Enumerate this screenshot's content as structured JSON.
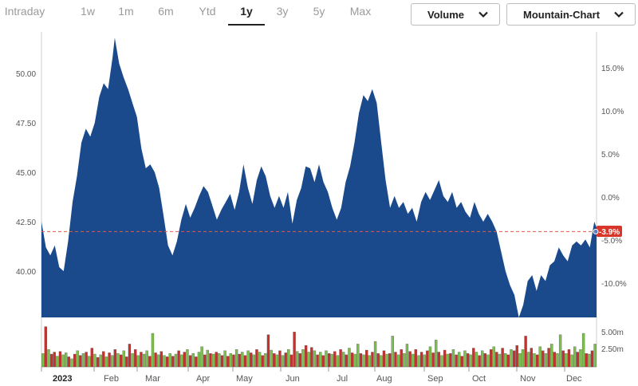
{
  "toolbar": {
    "ranges": [
      "Intraday",
      "1w",
      "1m",
      "6m",
      "Ytd",
      "1y",
      "3y",
      "5y",
      "Max"
    ],
    "active_range": "1y",
    "volume_dropdown": "Volume",
    "chart_type_dropdown": "Mountain-Chart"
  },
  "chart_data": {
    "type": "area",
    "price_ticks": [
      "50.00",
      "47.50",
      "45.00",
      "42.50",
      "40.00"
    ],
    "percent_ticks": [
      "15.0%",
      "10.0%",
      "5.0%",
      "0.0%",
      "-5.0%",
      "-10.0%"
    ],
    "volume_ticks": [
      "5.00m",
      "2.50m"
    ],
    "months": [
      "2023",
      "Feb",
      "Mar",
      "Apr",
      "May",
      "Jun",
      "Jul",
      "Aug",
      "Sep",
      "Oct",
      "Nov",
      "Dec"
    ],
    "current_change": "-3.9%",
    "reference_price": 42.0,
    "fill_color": "#1a4a8c",
    "up_color": "#7cc04b",
    "down_color": "#c9302c",
    "ylim": [
      37.0,
      52.5
    ],
    "points": [
      [
        0,
        42.5
      ],
      [
        2,
        41.2
      ],
      [
        4,
        40.8
      ],
      [
        6,
        41.3
      ],
      [
        8,
        40.2
      ],
      [
        10,
        40.0
      ],
      [
        12,
        41.5
      ],
      [
        14,
        43.5
      ],
      [
        16,
        44.8
      ],
      [
        18,
        46.5
      ],
      [
        20,
        47.2
      ],
      [
        22,
        46.8
      ],
      [
        24,
        47.5
      ],
      [
        26,
        48.8
      ],
      [
        28,
        49.5
      ],
      [
        30,
        49.2
      ],
      [
        32,
        50.8
      ],
      [
        33,
        51.8
      ],
      [
        35,
        50.5
      ],
      [
        37,
        49.8
      ],
      [
        39,
        49.2
      ],
      [
        41,
        48.5
      ],
      [
        43,
        47.8
      ],
      [
        45,
        46.2
      ],
      [
        47,
        45.2
      ],
      [
        49,
        45.4
      ],
      [
        51,
        45.0
      ],
      [
        53,
        44.2
      ],
      [
        55,
        42.8
      ],
      [
        57,
        41.3
      ],
      [
        59,
        40.8
      ],
      [
        61,
        41.5
      ],
      [
        63,
        42.6
      ],
      [
        65,
        43.4
      ],
      [
        67,
        42.7
      ],
      [
        69,
        43.2
      ],
      [
        71,
        43.8
      ],
      [
        73,
        44.3
      ],
      [
        75,
        44.0
      ],
      [
        77,
        43.3
      ],
      [
        79,
        42.6
      ],
      [
        81,
        43.1
      ],
      [
        83,
        43.5
      ],
      [
        85,
        43.9
      ],
      [
        87,
        43.1
      ],
      [
        89,
        44.0
      ],
      [
        91,
        45.4
      ],
      [
        93,
        44.2
      ],
      [
        95,
        43.4
      ],
      [
        97,
        44.6
      ],
      [
        99,
        45.3
      ],
      [
        101,
        44.8
      ],
      [
        103,
        43.8
      ],
      [
        105,
        43.2
      ],
      [
        107,
        43.8
      ],
      [
        109,
        43.2
      ],
      [
        111,
        44.0
      ],
      [
        113,
        42.4
      ],
      [
        115,
        43.6
      ],
      [
        117,
        44.2
      ],
      [
        119,
        45.3
      ],
      [
        121,
        45.2
      ],
      [
        123,
        44.5
      ],
      [
        125,
        45.4
      ],
      [
        127,
        44.5
      ],
      [
        129,
        44.0
      ],
      [
        131,
        43.2
      ],
      [
        133,
        42.6
      ],
      [
        135,
        43.2
      ],
      [
        137,
        44.5
      ],
      [
        139,
        45.3
      ],
      [
        141,
        46.5
      ],
      [
        143,
        48.0
      ],
      [
        145,
        48.9
      ],
      [
        147,
        48.6
      ],
      [
        149,
        49.2
      ],
      [
        151,
        48.5
      ],
      [
        153,
        46.5
      ],
      [
        155,
        44.6
      ],
      [
        157,
        43.2
      ],
      [
        159,
        43.8
      ],
      [
        161,
        43.2
      ],
      [
        163,
        43.5
      ],
      [
        165,
        42.9
      ],
      [
        167,
        43.2
      ],
      [
        169,
        42.5
      ],
      [
        171,
        43.5
      ],
      [
        173,
        44.0
      ],
      [
        175,
        43.6
      ],
      [
        177,
        44.1
      ],
      [
        179,
        44.6
      ],
      [
        181,
        43.8
      ],
      [
        183,
        43.5
      ],
      [
        185,
        44.0
      ],
      [
        187,
        43.2
      ],
      [
        189,
        43.5
      ],
      [
        191,
        43.0
      ],
      [
        193,
        42.7
      ],
      [
        195,
        43.5
      ],
      [
        197,
        42.9
      ],
      [
        199,
        42.5
      ],
      [
        201,
        42.9
      ],
      [
        203,
        42.5
      ],
      [
        205,
        42.0
      ],
      [
        207,
        41.0
      ],
      [
        209,
        40.0
      ],
      [
        211,
        39.3
      ],
      [
        213,
        38.8
      ],
      [
        215,
        37.5
      ],
      [
        217,
        38.3
      ],
      [
        219,
        39.5
      ],
      [
        221,
        39.8
      ],
      [
        223,
        39.0
      ],
      [
        225,
        39.8
      ],
      [
        227,
        39.5
      ],
      [
        229,
        40.3
      ],
      [
        231,
        40.5
      ],
      [
        233,
        41.2
      ],
      [
        235,
        40.8
      ],
      [
        237,
        40.5
      ],
      [
        239,
        41.3
      ],
      [
        241,
        41.5
      ],
      [
        243,
        41.3
      ],
      [
        245,
        41.6
      ],
      [
        247,
        41.2
      ],
      [
        249,
        42.5
      ],
      [
        250,
        42.2
      ]
    ],
    "volume": [
      [
        2.0,
        "u"
      ],
      [
        6.0,
        "d"
      ],
      [
        2.6,
        "u"
      ],
      [
        1.9,
        "d"
      ],
      [
        2.2,
        "d"
      ],
      [
        1.6,
        "u"
      ],
      [
        2.3,
        "d"
      ],
      [
        1.8,
        "u"
      ],
      [
        2.1,
        "u"
      ],
      [
        1.5,
        "d"
      ],
      [
        1.2,
        "u"
      ],
      [
        1.9,
        "d"
      ],
      [
        2.4,
        "u"
      ],
      [
        1.7,
        "d"
      ],
      [
        2.0,
        "u"
      ],
      [
        2.2,
        "d"
      ],
      [
        1.6,
        "u"
      ],
      [
        2.8,
        "d"
      ],
      [
        1.9,
        "u"
      ],
      [
        1.4,
        "d"
      ],
      [
        1.8,
        "u"
      ],
      [
        2.3,
        "d"
      ],
      [
        1.5,
        "u"
      ],
      [
        2.1,
        "d"
      ],
      [
        1.7,
        "u"
      ],
      [
        2.6,
        "d"
      ],
      [
        2.0,
        "u"
      ],
      [
        1.8,
        "d"
      ],
      [
        2.4,
        "u"
      ],
      [
        1.5,
        "d"
      ],
      [
        3.4,
        "d"
      ],
      [
        2.0,
        "u"
      ],
      [
        2.6,
        "d"
      ],
      [
        1.7,
        "u"
      ],
      [
        2.2,
        "d"
      ],
      [
        1.9,
        "u"
      ],
      [
        2.4,
        "u"
      ],
      [
        1.6,
        "d"
      ],
      [
        5.0,
        "u"
      ],
      [
        2.1,
        "d"
      ],
      [
        1.8,
        "u"
      ],
      [
        2.3,
        "d"
      ],
      [
        1.7,
        "u"
      ],
      [
        1.5,
        "d"
      ],
      [
        2.0,
        "u"
      ],
      [
        1.6,
        "d"
      ],
      [
        1.9,
        "u"
      ],
      [
        2.4,
        "d"
      ],
      [
        1.8,
        "u"
      ],
      [
        2.2,
        "d"
      ],
      [
        2.6,
        "u"
      ],
      [
        1.7,
        "d"
      ],
      [
        2.0,
        "u"
      ],
      [
        1.5,
        "d"
      ],
      [
        2.2,
        "u"
      ],
      [
        3.0,
        "u"
      ],
      [
        1.8,
        "d"
      ],
      [
        2.5,
        "u"
      ],
      [
        2.0,
        "d"
      ],
      [
        1.9,
        "u"
      ],
      [
        2.2,
        "d"
      ],
      [
        2.0,
        "u"
      ],
      [
        1.7,
        "d"
      ],
      [
        2.4,
        "u"
      ],
      [
        1.6,
        "d"
      ],
      [
        2.0,
        "u"
      ],
      [
        1.8,
        "d"
      ],
      [
        2.6,
        "u"
      ],
      [
        1.9,
        "d"
      ],
      [
        2.2,
        "u"
      ],
      [
        1.7,
        "d"
      ],
      [
        2.4,
        "u"
      ],
      [
        2.1,
        "d"
      ],
      [
        1.8,
        "u"
      ],
      [
        2.6,
        "d"
      ],
      [
        2.2,
        "u"
      ],
      [
        1.7,
        "d"
      ],
      [
        2.0,
        "u"
      ],
      [
        4.8,
        "d"
      ],
      [
        2.5,
        "u"
      ],
      [
        2.0,
        "d"
      ],
      [
        1.8,
        "u"
      ],
      [
        2.4,
        "d"
      ],
      [
        1.7,
        "u"
      ],
      [
        2.1,
        "d"
      ],
      [
        2.6,
        "u"
      ],
      [
        1.8,
        "d"
      ],
      [
        5.2,
        "d"
      ],
      [
        2.3,
        "u"
      ],
      [
        2.0,
        "d"
      ],
      [
        2.6,
        "u"
      ],
      [
        3.2,
        "d"
      ],
      [
        2.2,
        "u"
      ],
      [
        2.9,
        "d"
      ],
      [
        2.4,
        "u"
      ],
      [
        1.8,
        "d"
      ],
      [
        2.2,
        "u"
      ],
      [
        1.7,
        "d"
      ],
      [
        2.4,
        "u"
      ],
      [
        2.0,
        "d"
      ],
      [
        1.9,
        "u"
      ],
      [
        2.3,
        "d"
      ],
      [
        1.7,
        "u"
      ],
      [
        2.6,
        "d"
      ],
      [
        2.2,
        "u"
      ],
      [
        1.8,
        "d"
      ],
      [
        2.8,
        "u"
      ],
      [
        2.1,
        "d"
      ],
      [
        1.9,
        "u"
      ],
      [
        3.4,
        "u"
      ],
      [
        2.0,
        "d"
      ],
      [
        1.8,
        "u"
      ],
      [
        2.5,
        "d"
      ],
      [
        1.7,
        "u"
      ],
      [
        2.2,
        "d"
      ],
      [
        3.8,
        "u"
      ],
      [
        2.0,
        "d"
      ],
      [
        1.7,
        "u"
      ],
      [
        2.4,
        "d"
      ],
      [
        1.9,
        "u"
      ],
      [
        2.0,
        "d"
      ],
      [
        4.6,
        "u"
      ],
      [
        2.2,
        "d"
      ],
      [
        1.8,
        "u"
      ],
      [
        2.6,
        "d"
      ],
      [
        2.0,
        "u"
      ],
      [
        3.4,
        "u"
      ],
      [
        2.3,
        "d"
      ],
      [
        1.9,
        "u"
      ],
      [
        2.6,
        "d"
      ],
      [
        1.7,
        "u"
      ],
      [
        2.2,
        "d"
      ],
      [
        1.8,
        "u"
      ],
      [
        2.4,
        "d"
      ],
      [
        3.0,
        "u"
      ],
      [
        2.1,
        "d"
      ],
      [
        4.0,
        "u"
      ],
      [
        2.2,
        "d"
      ],
      [
        1.7,
        "u"
      ],
      [
        2.5,
        "d"
      ],
      [
        1.9,
        "u"
      ],
      [
        2.0,
        "d"
      ],
      [
        2.6,
        "u"
      ],
      [
        1.8,
        "d"
      ],
      [
        2.2,
        "u"
      ],
      [
        1.6,
        "d"
      ],
      [
        2.4,
        "u"
      ],
      [
        2.0,
        "d"
      ],
      [
        1.8,
        "u"
      ],
      [
        2.8,
        "d"
      ],
      [
        2.2,
        "u"
      ],
      [
        1.7,
        "d"
      ],
      [
        2.4,
        "u"
      ],
      [
        2.0,
        "d"
      ],
      [
        1.8,
        "u"
      ],
      [
        2.6,
        "d"
      ],
      [
        3.0,
        "u"
      ],
      [
        2.2,
        "d"
      ],
      [
        1.9,
        "u"
      ],
      [
        2.8,
        "d"
      ],
      [
        2.0,
        "u"
      ],
      [
        1.8,
        "d"
      ],
      [
        2.6,
        "u"
      ],
      [
        2.4,
        "d"
      ],
      [
        3.2,
        "d"
      ],
      [
        2.0,
        "u"
      ],
      [
        2.6,
        "u"
      ],
      [
        4.6,
        "d"
      ],
      [
        2.2,
        "u"
      ],
      [
        2.8,
        "d"
      ],
      [
        2.0,
        "u"
      ],
      [
        1.8,
        "d"
      ],
      [
        3.0,
        "u"
      ],
      [
        2.4,
        "d"
      ],
      [
        2.0,
        "u"
      ],
      [
        2.8,
        "d"
      ],
      [
        3.4,
        "u"
      ],
      [
        2.2,
        "d"
      ],
      [
        2.0,
        "u"
      ],
      [
        4.8,
        "u"
      ],
      [
        2.4,
        "d"
      ],
      [
        2.0,
        "u"
      ],
      [
        2.6,
        "d"
      ],
      [
        1.8,
        "u"
      ],
      [
        3.0,
        "u"
      ],
      [
        2.2,
        "d"
      ],
      [
        2.6,
        "u"
      ],
      [
        5.0,
        "u"
      ],
      [
        2.0,
        "d"
      ],
      [
        1.9,
        "u"
      ],
      [
        2.4,
        "d"
      ],
      [
        3.4,
        "u"
      ]
    ]
  }
}
